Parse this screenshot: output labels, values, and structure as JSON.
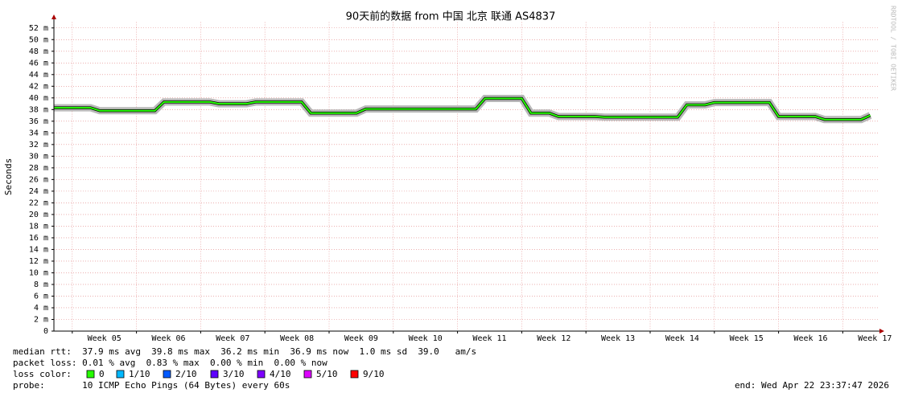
{
  "chart_data": {
    "type": "line",
    "title": "90天前的数据 from  中国 北京 联通 AS4837",
    "ylabel": "Seconds",
    "side_note": "RRDTOOL / TOBI OETIKER",
    "x": [
      0,
      1,
      2,
      3,
      4,
      5,
      6,
      7,
      8,
      9,
      10,
      11,
      12,
      13,
      14,
      15,
      16,
      17,
      18,
      19,
      20,
      21,
      22,
      23,
      24,
      25,
      26,
      27,
      28,
      29,
      30,
      31,
      32,
      33,
      34,
      35,
      36,
      37,
      38,
      39,
      40,
      41,
      42,
      43,
      44,
      45,
      46,
      47,
      48,
      49,
      50,
      51,
      52,
      53,
      54,
      55,
      56,
      57,
      58,
      59,
      60,
      61,
      62,
      63,
      64,
      65,
      66,
      67,
      68,
      69,
      70,
      71,
      72,
      73,
      74,
      75,
      76,
      77,
      78,
      79,
      80,
      81,
      82,
      83,
      84,
      85,
      86,
      87,
      88,
      89
    ],
    "values": [
      38.3,
      38.3,
      38.3,
      38.3,
      38.3,
      37.8,
      37.8,
      37.8,
      37.8,
      37.8,
      37.8,
      37.8,
      39.3,
      39.3,
      39.3,
      39.3,
      39.3,
      39.3,
      39.0,
      39.0,
      39.0,
      39.0,
      39.3,
      39.3,
      39.3,
      39.3,
      39.3,
      39.3,
      37.4,
      37.4,
      37.4,
      37.4,
      37.4,
      37.4,
      38.1,
      38.1,
      38.1,
      38.1,
      38.1,
      38.1,
      38.1,
      38.1,
      38.1,
      38.1,
      38.1,
      38.1,
      38.1,
      39.9,
      39.9,
      39.9,
      39.9,
      39.9,
      37.4,
      37.4,
      37.4,
      36.8,
      36.8,
      36.8,
      36.8,
      36.8,
      36.7,
      36.7,
      36.7,
      36.7,
      36.7,
      36.7,
      36.7,
      36.7,
      36.7,
      38.8,
      38.8,
      38.8,
      39.2,
      39.2,
      39.2,
      39.2,
      39.2,
      39.2,
      39.2,
      36.8,
      36.8,
      36.8,
      36.8,
      36.8,
      36.3,
      36.3,
      36.3,
      36.3,
      36.3,
      37.0
    ],
    "color": "#26ff00",
    "smoke_color": "#b8b8b8",
    "xlim": [
      0,
      90
    ],
    "ylim": [
      0,
      53
    ],
    "grid": true,
    "xticks": [
      {
        "value": 5.5,
        "label": "Week 05"
      },
      {
        "value": 12.5,
        "label": "Week 06"
      },
      {
        "value": 19.5,
        "label": "Week 07"
      },
      {
        "value": 26.5,
        "label": "Week 08"
      },
      {
        "value": 33.5,
        "label": "Week 09"
      },
      {
        "value": 40.5,
        "label": "Week 10"
      },
      {
        "value": 47.5,
        "label": "Week 11"
      },
      {
        "value": 54.5,
        "label": "Week 12"
      },
      {
        "value": 61.5,
        "label": "Week 13"
      },
      {
        "value": 68.5,
        "label": "Week 14"
      },
      {
        "value": 75.5,
        "label": "Week 15"
      },
      {
        "value": 82.5,
        "label": "Week 16"
      },
      {
        "value": 89.5,
        "label": "Week 17"
      }
    ],
    "yticks": [
      0,
      {
        "value": 2,
        "label": "2 m"
      },
      {
        "value": 4,
        "label": "4 m"
      },
      {
        "value": 6,
        "label": "6 m"
      },
      {
        "value": 8,
        "label": "8 m"
      },
      {
        "value": 10,
        "label": "10 m"
      },
      {
        "value": 12,
        "label": "12 m"
      },
      {
        "value": 14,
        "label": "14 m"
      },
      {
        "value": 16,
        "label": "16 m"
      },
      {
        "value": 18,
        "label": "18 m"
      },
      {
        "value": 20,
        "label": "20 m"
      },
      {
        "value": 22,
        "label": "22 m"
      },
      {
        "value": 24,
        "label": "24 m"
      },
      {
        "value": 26,
        "label": "26 m"
      },
      {
        "value": 28,
        "label": "28 m"
      },
      {
        "value": 30,
        "label": "30 m"
      },
      {
        "value": 32,
        "label": "32 m"
      },
      {
        "value": 34,
        "label": "34 m"
      },
      {
        "value": 36,
        "label": "36 m"
      },
      {
        "value": 38,
        "label": "38 m"
      },
      {
        "value": 40,
        "label": "40 m"
      },
      {
        "value": 42,
        "label": "42 m"
      },
      {
        "value": 44,
        "label": "44 m"
      },
      {
        "value": 46,
        "label": "46 m"
      },
      {
        "value": 48,
        "label": "48 m"
      },
      {
        "value": 50,
        "label": "50 m"
      },
      {
        "value": 52,
        "label": "52 m"
      }
    ]
  },
  "footer": {
    "median_rtt": "median rtt:  37.9 ms avg  39.8 ms max  36.2 ms min  36.9 ms now  1.0 ms sd  39.0   am/s",
    "packet_loss": "packet loss: 0.01 % avg  0.83 % max  0.00 % min  0.00 % now",
    "loss_color_label": "loss color:",
    "loss_colors": [
      {
        "label": "0",
        "color": "#26ff00"
      },
      {
        "label": "1/10",
        "color": "#00b8ff"
      },
      {
        "label": "2/10",
        "color": "#0059ff"
      },
      {
        "label": "3/10",
        "color": "#5e00ff"
      },
      {
        "label": "4/10",
        "color": "#7e00ff"
      },
      {
        "label": "5/10",
        "color": "#dd00ff"
      },
      {
        "label": "9/10",
        "color": "#ff0000"
      }
    ],
    "probe": "probe:       10 ICMP Echo Pings (64 Bytes) every 60s",
    "end": "end: Wed Apr 22 23:37:47 2026"
  }
}
